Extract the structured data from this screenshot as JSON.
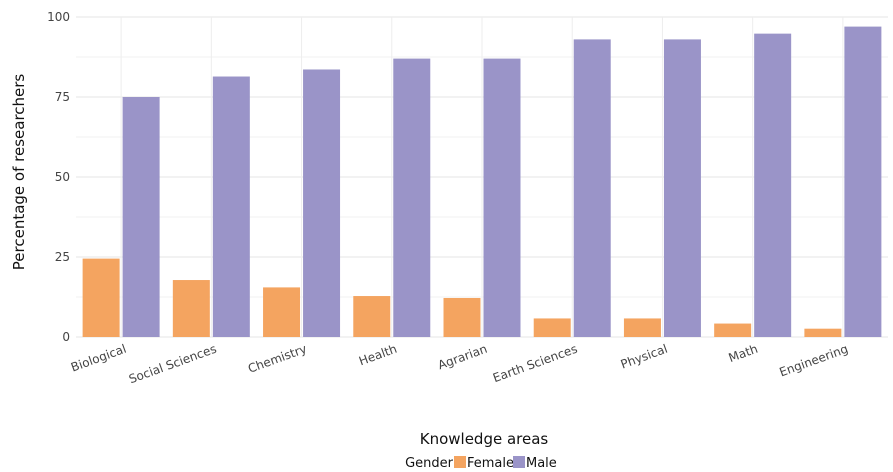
{
  "chart_data": {
    "type": "bar",
    "categories": [
      "Biological",
      "Social Sciences",
      "Chemistry",
      "Health",
      "Agrarian",
      "Earth Sciences",
      "Physical",
      "Math",
      "Engineering"
    ],
    "series": [
      {
        "name": "Female",
        "color": "#F4A460",
        "values": [
          24.5,
          17.8,
          15.5,
          12.8,
          12.2,
          5.8,
          5.8,
          4.2,
          2.6
        ]
      },
      {
        "name": "Male",
        "color": "#9A94C8",
        "values": [
          75.0,
          81.4,
          83.6,
          87.0,
          87.0,
          93.0,
          93.0,
          94.8,
          97.0
        ]
      }
    ],
    "xlabel": "Knowledge areas",
    "ylabel": "Percentage of researchers",
    "ylim": [
      0,
      100
    ],
    "yticks": [
      0,
      25,
      50,
      75,
      100
    ],
    "grid": true,
    "legend": {
      "title": "Gender",
      "position": "bottom",
      "labels": [
        "Female",
        "Male"
      ]
    }
  }
}
